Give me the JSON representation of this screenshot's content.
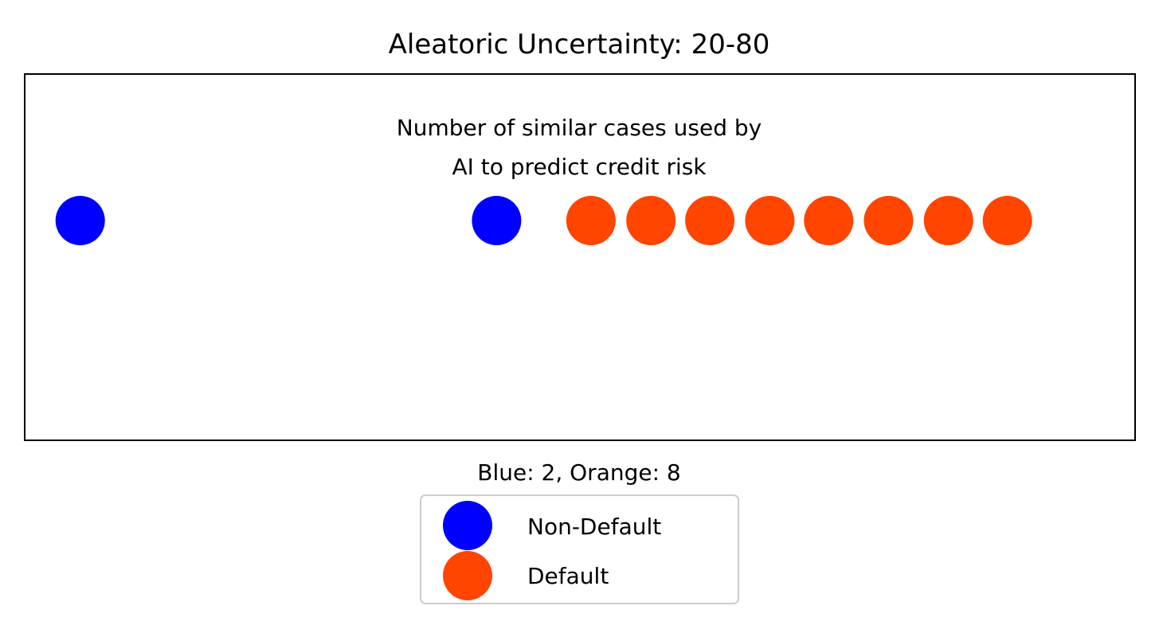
{
  "chart_data": {
    "type": "scatter",
    "title": "Aleatoric Uncertainty: 20-80",
    "annotation": {
      "line1": "Number of similar cases used by",
      "line2": "AI to predict credit risk"
    },
    "xlabel": "Blue: 2, Orange: 8",
    "ylabel": "",
    "xlim": [
      0,
      10
    ],
    "ylim": [
      0,
      2
    ],
    "grid": false,
    "legend_placement": "bottom-center",
    "series": [
      {
        "name": "Non-Default",
        "color": "#0000ff",
        "points": [
          {
            "x": 0.5,
            "y": 1.2
          },
          {
            "x": 4.25,
            "y": 1.2
          }
        ]
      },
      {
        "name": "Default",
        "color": "#ff4500",
        "points": [
          {
            "x": 5.1,
            "y": 1.2
          },
          {
            "x": 5.64,
            "y": 1.2
          },
          {
            "x": 6.17,
            "y": 1.2
          },
          {
            "x": 6.71,
            "y": 1.2
          },
          {
            "x": 7.24,
            "y": 1.2
          },
          {
            "x": 7.78,
            "y": 1.2
          },
          {
            "x": 8.32,
            "y": 1.2
          },
          {
            "x": 8.85,
            "y": 1.2
          }
        ]
      }
    ]
  }
}
